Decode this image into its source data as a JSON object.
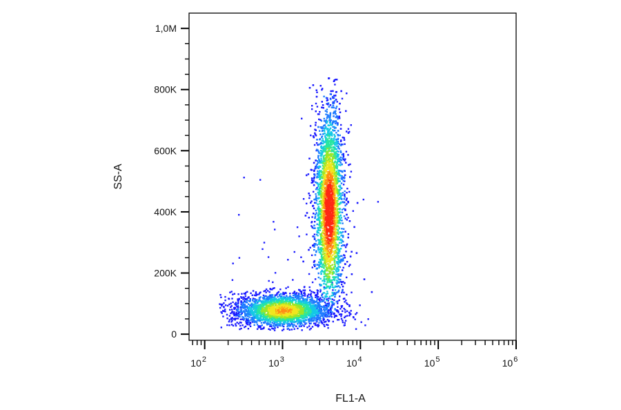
{
  "chart_data": {
    "type": "scatter",
    "subtype": "flow-cytometry-density-dot-plot",
    "title": "",
    "xlabel": "FL1-A",
    "ylabel": "SS-A",
    "x_scale": "log",
    "y_scale": "linear",
    "xlim": [
      63,
      1000000
    ],
    "ylim": [
      -20000,
      1050000
    ],
    "x_ticks": [
      {
        "value": 100,
        "base": "10",
        "exp": "2"
      },
      {
        "value": 1000,
        "base": "10",
        "exp": "3"
      },
      {
        "value": 10000,
        "base": "10",
        "exp": "4"
      },
      {
        "value": 100000,
        "base": "10",
        "exp": "5"
      },
      {
        "value": 1000000,
        "base": "10",
        "exp": "6"
      }
    ],
    "y_ticks": [
      {
        "value": 0,
        "label": "0"
      },
      {
        "value": 200000,
        "label": "200K"
      },
      {
        "value": 400000,
        "label": "400K"
      },
      {
        "value": 600000,
        "label": "600K"
      },
      {
        "value": 800000,
        "label": "800K"
      },
      {
        "value": 1000000,
        "label": "1,0M"
      }
    ],
    "grid": false,
    "legend": "none",
    "density_colors": [
      "#1a1aff",
      "#1e7bff",
      "#14c8e6",
      "#28e6a0",
      "#9be628",
      "#f0e61e",
      "#ff8c14",
      "#ff2814"
    ],
    "populations": [
      {
        "x_center": 3900,
        "y_center": 420000,
        "x_range": [
          2300,
          6200
        ],
        "y_range": [
          100000,
          830000
        ],
        "peak_density_at": [
          3900,
          400000
        ]
      },
      {
        "x_center": 1000,
        "y_center": 80000,
        "x_range": [
          150,
          20000
        ],
        "y_range": [
          20000,
          170000
        ],
        "peak_density_at": [
          1000,
          80000
        ]
      }
    ]
  }
}
